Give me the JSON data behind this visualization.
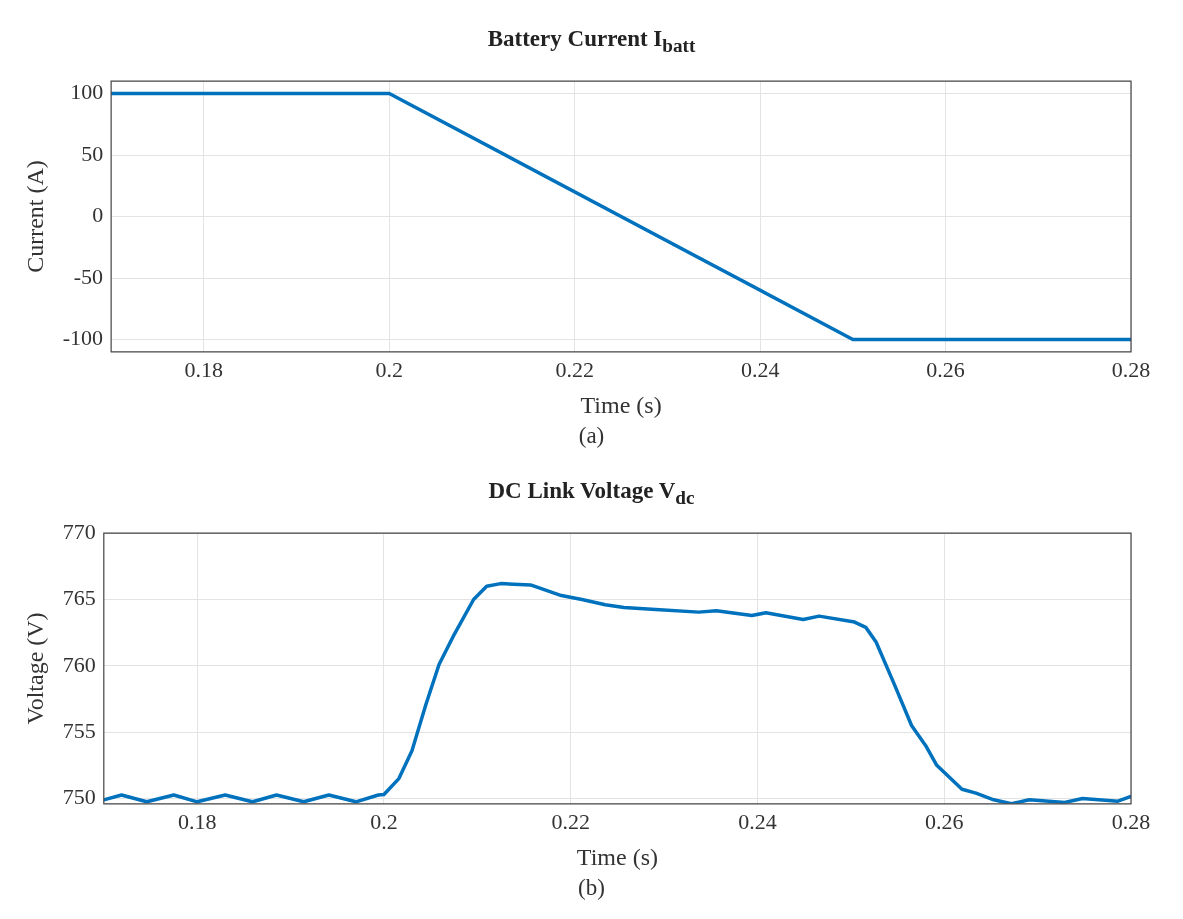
{
  "chart_data": [
    {
      "type": "line",
      "title": "Battery Current I$_{batt}$",
      "xlabel": "Time (s)",
      "ylabel": "Current (A)",
      "annotations": [
        "(a)"
      ],
      "marker": "none",
      "line_style": "solid",
      "grid": true,
      "legend": false,
      "xlim": [
        0.17,
        0.28
      ],
      "xticks": [
        0.18,
        0.2,
        0.22,
        0.24,
        0.26,
        0.28
      ],
      "ylim": [
        -110,
        110
      ],
      "yticks": [
        -100,
        -50,
        0,
        50,
        100
      ],
      "series": [
        {
          "color": "#0072bd",
          "x": [
            0.17,
            0.2,
            0.25,
            0.28
          ],
          "values": [
            100,
            100,
            -100,
            -100
          ]
        }
      ]
    },
    {
      "type": "line",
      "title": "DC Link Voltage V$_{dc}$",
      "xlabel": "Time (s)",
      "ylabel": "Voltage (V)",
      "annotations": [
        "(b)"
      ],
      "marker": "none",
      "line_style": "solid",
      "grid": true,
      "legend": false,
      "xlim": [
        0.17,
        0.28
      ],
      "xticks": [
        0.18,
        0.2,
        0.22,
        0.24,
        0.26,
        0.28
      ],
      "ylim": [
        749.6,
        770
      ],
      "yticks": [
        750,
        755,
        760,
        765,
        770
      ],
      "series": [
        {
          "color": "#0072bd",
          "x": [
            0.17,
            0.1719,
            0.1746,
            0.1775,
            0.18,
            0.183,
            0.1859,
            0.1885,
            0.1914,
            0.1941,
            0.197,
            0.1994,
            0.2,
            0.2016,
            0.203,
            0.2045,
            0.2059,
            0.2074,
            0.2096,
            0.211,
            0.2125,
            0.2157,
            0.219,
            0.2212,
            0.2237,
            0.2257,
            0.2291,
            0.2337,
            0.2356,
            0.2394,
            0.2409,
            0.2449,
            0.2466,
            0.2504,
            0.2516,
            0.2527,
            0.2546,
            0.2565,
            0.258,
            0.2592,
            0.2619,
            0.2634,
            0.2653,
            0.2672,
            0.2691,
            0.2729,
            0.2748,
            0.2786,
            0.28
          ],
          "values": [
            749.9,
            750.26,
            749.75,
            750.26,
            749.75,
            750.26,
            749.75,
            750.26,
            749.75,
            750.26,
            749.75,
            750.26,
            750.3,
            751.5,
            753.6,
            757.1,
            760.1,
            762.2,
            765.0,
            766.0,
            766.2,
            766.1,
            765.3,
            765.0,
            764.6,
            764.4,
            764.25,
            764.05,
            764.15,
            763.8,
            764.0,
            763.5,
            763.75,
            763.3,
            762.9,
            761.8,
            758.7,
            755.5,
            754.0,
            752.5,
            750.7,
            750.4,
            749.9,
            749.6,
            749.9,
            749.7,
            750.0,
            749.8,
            750.15
          ]
        }
      ]
    }
  ]
}
